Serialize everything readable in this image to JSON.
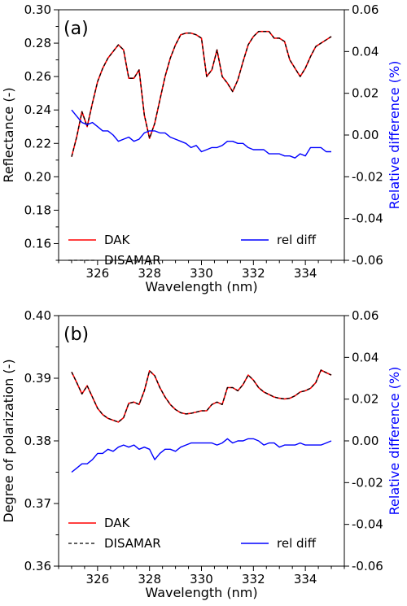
{
  "colors": {
    "dak": "#ff0000",
    "disamar": "#000000",
    "rel_diff": "#0000ff",
    "axis": "#000000"
  },
  "chart_data": [
    {
      "type": "line",
      "panel_label": "(a)",
      "xlabel": "Wavelength (nm)",
      "ylabel": "Reflectance (-)",
      "y2label": "Relative difference (%)",
      "xlim": [
        324.5,
        335.5
      ],
      "ylim": [
        0.15,
        0.3
      ],
      "y2lim": [
        -0.06,
        0.06
      ],
      "xticks": [
        "326",
        "328",
        "330",
        "332",
        "334"
      ],
      "yticks": [
        "0.16",
        "0.18",
        "0.20",
        "0.22",
        "0.24",
        "0.26",
        "0.28",
        "0.30"
      ],
      "y2ticks": [
        "-0.06",
        "-0.04",
        "-0.02",
        "0.00",
        "0.02",
        "0.04",
        "0.06"
      ],
      "legend": [
        "DAK",
        "DISAMAR",
        "rel diff"
      ],
      "x": [
        325.0,
        325.2,
        325.4,
        325.6,
        325.8,
        326.0,
        326.2,
        326.4,
        326.6,
        326.8,
        327.0,
        327.2,
        327.4,
        327.6,
        327.8,
        328.0,
        328.2,
        328.4,
        328.6,
        328.8,
        329.0,
        329.2,
        329.4,
        329.6,
        329.8,
        330.0,
        330.2,
        330.4,
        330.6,
        330.8,
        331.0,
        331.2,
        331.4,
        331.6,
        331.8,
        332.0,
        332.2,
        332.4,
        332.6,
        332.8,
        333.0,
        333.2,
        333.4,
        333.6,
        333.8,
        334.0,
        334.2,
        334.4,
        334.6,
        334.8,
        335.0
      ],
      "series": [
        {
          "name": "DAK",
          "axis": "left",
          "values": [
            0.212,
            0.224,
            0.239,
            0.23,
            0.244,
            0.257,
            0.265,
            0.271,
            0.275,
            0.279,
            0.276,
            0.259,
            0.259,
            0.264,
            0.237,
            0.223,
            0.232,
            0.246,
            0.26,
            0.271,
            0.279,
            0.285,
            0.286,
            0.286,
            0.285,
            0.283,
            0.26,
            0.264,
            0.276,
            0.26,
            0.256,
            0.251,
            0.258,
            0.269,
            0.279,
            0.284,
            0.287,
            0.287,
            0.287,
            0.283,
            0.283,
            0.281,
            0.27,
            0.265,
            0.26,
            0.265,
            0.272,
            0.278,
            0.28,
            0.282,
            0.284
          ]
        },
        {
          "name": "DISAMAR",
          "axis": "left",
          "values": [
            0.212,
            0.224,
            0.239,
            0.23,
            0.244,
            0.257,
            0.265,
            0.271,
            0.275,
            0.279,
            0.276,
            0.259,
            0.259,
            0.264,
            0.237,
            0.223,
            0.232,
            0.246,
            0.26,
            0.271,
            0.279,
            0.285,
            0.286,
            0.286,
            0.285,
            0.283,
            0.26,
            0.264,
            0.276,
            0.26,
            0.256,
            0.251,
            0.258,
            0.269,
            0.279,
            0.284,
            0.287,
            0.287,
            0.287,
            0.283,
            0.283,
            0.281,
            0.27,
            0.265,
            0.26,
            0.265,
            0.272,
            0.278,
            0.28,
            0.282,
            0.284
          ]
        },
        {
          "name": "rel diff",
          "axis": "right",
          "values": [
            0.012,
            0.009,
            0.006,
            0.005,
            0.006,
            0.004,
            0.002,
            0.002,
            0.0,
            -0.003,
            -0.002,
            -0.001,
            -0.003,
            -0.002,
            0.001,
            0.002,
            0.002,
            0.001,
            0.001,
            -0.001,
            -0.002,
            -0.003,
            -0.004,
            -0.006,
            -0.005,
            -0.008,
            -0.007,
            -0.006,
            -0.006,
            -0.005,
            -0.003,
            -0.003,
            -0.004,
            -0.004,
            -0.006,
            -0.007,
            -0.007,
            -0.007,
            -0.009,
            -0.009,
            -0.009,
            -0.01,
            -0.01,
            -0.011,
            -0.009,
            -0.01,
            -0.006,
            -0.006,
            -0.006,
            -0.008,
            -0.008
          ]
        }
      ]
    },
    {
      "type": "line",
      "panel_label": "(b)",
      "xlabel": "Wavelength (nm)",
      "ylabel": "Degree of polarization (-)",
      "y2label": "Relative difference (%)",
      "xlim": [
        324.5,
        335.5
      ],
      "ylim": [
        0.36,
        0.4
      ],
      "y2lim": [
        -0.06,
        0.06
      ],
      "xticks": [
        "326",
        "328",
        "330",
        "332",
        "334"
      ],
      "yticks": [
        "0.36",
        "0.37",
        "0.38",
        "0.39",
        "0.40"
      ],
      "y2ticks": [
        "-0.06",
        "-0.04",
        "-0.02",
        "0.00",
        "0.02",
        "0.04",
        "0.06"
      ],
      "legend": [
        "DAK",
        "DISAMAR",
        "rel diff"
      ],
      "x": [
        325.0,
        325.2,
        325.4,
        325.6,
        325.8,
        326.0,
        326.2,
        326.4,
        326.6,
        326.8,
        327.0,
        327.2,
        327.4,
        327.6,
        327.8,
        328.0,
        328.2,
        328.4,
        328.6,
        328.8,
        329.0,
        329.2,
        329.4,
        329.6,
        329.8,
        330.0,
        330.2,
        330.4,
        330.6,
        330.8,
        331.0,
        331.2,
        331.4,
        331.6,
        331.8,
        332.0,
        332.2,
        332.4,
        332.6,
        332.8,
        333.0,
        333.2,
        333.4,
        333.6,
        333.8,
        334.0,
        334.2,
        334.4,
        334.6,
        334.8,
        335.0
      ],
      "series": [
        {
          "name": "DAK",
          "axis": "left",
          "values": [
            0.391,
            0.3893,
            0.3875,
            0.3888,
            0.387,
            0.3852,
            0.3842,
            0.3836,
            0.3833,
            0.383,
            0.3837,
            0.386,
            0.3862,
            0.3858,
            0.388,
            0.3912,
            0.3904,
            0.3885,
            0.387,
            0.3858,
            0.385,
            0.3845,
            0.3843,
            0.3844,
            0.3846,
            0.3848,
            0.3848,
            0.3858,
            0.3862,
            0.3858,
            0.3885,
            0.3885,
            0.388,
            0.389,
            0.3905,
            0.3897,
            0.3885,
            0.3878,
            0.3874,
            0.387,
            0.3868,
            0.3867,
            0.3868,
            0.3872,
            0.3878,
            0.388,
            0.3884,
            0.3893,
            0.3913,
            0.3909,
            0.3905
          ]
        },
        {
          "name": "DISAMAR",
          "axis": "left",
          "values": [
            0.391,
            0.3893,
            0.3875,
            0.3888,
            0.387,
            0.3852,
            0.3842,
            0.3836,
            0.3833,
            0.383,
            0.3837,
            0.386,
            0.3862,
            0.3858,
            0.388,
            0.3912,
            0.3904,
            0.3885,
            0.387,
            0.3858,
            0.385,
            0.3845,
            0.3843,
            0.3844,
            0.3846,
            0.3848,
            0.3848,
            0.3858,
            0.3862,
            0.3858,
            0.3885,
            0.3885,
            0.388,
            0.389,
            0.3905,
            0.3897,
            0.3885,
            0.3878,
            0.3874,
            0.387,
            0.3868,
            0.3867,
            0.3868,
            0.3872,
            0.3878,
            0.388,
            0.3884,
            0.3893,
            0.3913,
            0.3909,
            0.3905
          ]
        },
        {
          "name": "rel diff",
          "axis": "right",
          "values": [
            -0.015,
            -0.013,
            -0.011,
            -0.011,
            -0.009,
            -0.006,
            -0.006,
            -0.004,
            -0.005,
            -0.003,
            -0.002,
            -0.003,
            -0.002,
            -0.004,
            -0.003,
            -0.004,
            -0.009,
            -0.006,
            -0.004,
            -0.004,
            -0.005,
            -0.003,
            -0.002,
            -0.001,
            -0.001,
            -0.001,
            -0.001,
            -0.001,
            -0.002,
            -0.001,
            0.001,
            -0.001,
            0.0,
            0.0,
            0.001,
            0.001,
            0.0,
            -0.002,
            -0.001,
            -0.001,
            -0.003,
            -0.002,
            -0.002,
            -0.002,
            -0.001,
            -0.002,
            -0.002,
            -0.002,
            -0.002,
            -0.001,
            0.0
          ]
        }
      ]
    }
  ]
}
